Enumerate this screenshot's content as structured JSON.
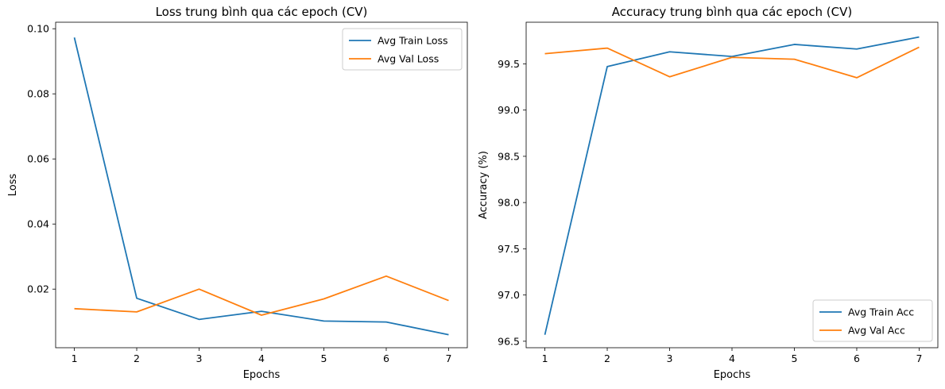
{
  "chart_data": [
    {
      "type": "line",
      "title": "Loss trung bình qua các epoch (CV)",
      "xlabel": "Epochs",
      "ylabel": "Loss",
      "x": [
        1,
        2,
        3,
        4,
        5,
        6,
        7
      ],
      "xticks": [
        "1",
        "2",
        "3",
        "4",
        "5",
        "6",
        "7"
      ],
      "yticks": [
        "0.02",
        "0.04",
        "0.06",
        "0.08",
        "0.10"
      ],
      "xlim": [
        0.7,
        7.3
      ],
      "ylim": [
        0.002,
        0.102
      ],
      "legend_position": "upper-right",
      "series": [
        {
          "name": "Avg Train Loss",
          "color": "#1f77b4",
          "values": [
            0.0973,
            0.0172,
            0.0107,
            0.0132,
            0.0102,
            0.0099,
            0.006
          ]
        },
        {
          "name": "Avg Val Loss",
          "color": "#ff7f0e",
          "values": [
            0.014,
            0.013,
            0.02,
            0.012,
            0.017,
            0.024,
            0.0165
          ]
        }
      ]
    },
    {
      "type": "line",
      "title": "Accuracy trung bình qua các epoch (CV)",
      "xlabel": "Epochs",
      "ylabel": "Accuracy (%)",
      "x": [
        1,
        2,
        3,
        4,
        5,
        6,
        7
      ],
      "xticks": [
        "1",
        "2",
        "3",
        "4",
        "5",
        "6",
        "7"
      ],
      "yticks": [
        "96.5",
        "97.0",
        "97.5",
        "98.0",
        "98.5",
        "99.0",
        "99.5"
      ],
      "xlim": [
        0.7,
        7.3
      ],
      "ylim": [
        96.43,
        99.95
      ],
      "legend_position": "lower-right",
      "series": [
        {
          "name": "Avg Train Acc",
          "color": "#1f77b4",
          "values": [
            96.57,
            99.47,
            99.63,
            99.58,
            99.71,
            99.66,
            99.79
          ]
        },
        {
          "name": "Avg Val Acc",
          "color": "#ff7f0e",
          "values": [
            99.61,
            99.67,
            99.36,
            99.57,
            99.55,
            99.35,
            99.68
          ]
        }
      ]
    }
  ]
}
